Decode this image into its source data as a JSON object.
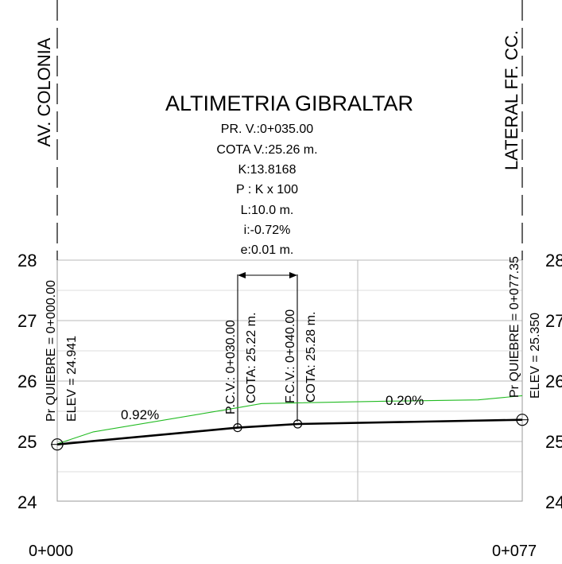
{
  "title": "ALTIMETRIA GIBRALTAR",
  "streets": {
    "left": "AV. COLONIA",
    "right": "LATERAL FF. CC."
  },
  "curve_params": [
    "PR. V.:0+035.00",
    "COTA V.:25.26 m.",
    "K:13.8168",
    "P : K x 100",
    "L:10.0 m.",
    "i:-0.72%",
    "e:0.01 m."
  ],
  "stations": {
    "start": "0+000",
    "end": "0+077"
  },
  "y_ticks_left": [
    "28",
    "27",
    "26",
    "25",
    "24"
  ],
  "y_ticks_right": [
    "28",
    "27",
    "26",
    "25",
    "24"
  ],
  "points": {
    "start_station": "Pr QUIEBRE = 0+000.00",
    "start_elev": "ELEV =  24.941",
    "pcv_station": "P.C.V.: 0+030.00",
    "pcv_cota": "COTA: 25.22 m.",
    "fcv_station": "F.C.V.: 0+040.00",
    "fcv_cota": "COTA: 25.28 m.",
    "end_station": "Pr QUIEBRE = 0+077.35",
    "end_elev": "ELEV =  25.350"
  },
  "slopes": {
    "left": "0.92%",
    "right": "0.20%"
  },
  "colors": {
    "terrain": "#22bb22",
    "profile": "#000000",
    "grid": "#b9b9b9"
  },
  "chart_data": {
    "type": "line",
    "title": "ALTIMETRIA GIBRALTAR",
    "xlabel": "",
    "ylabel": "",
    "xlim": [
      0,
      77.35
    ],
    "ylim": [
      24,
      28
    ],
    "series": [
      {
        "x": [
          0,
          30,
          40,
          77.35
        ],
        "y": [
          24.941,
          25.22,
          25.28,
          25.35
        ]
      },
      {
        "x": [
          0,
          6,
          30,
          34,
          55,
          70,
          77.35
        ],
        "y": [
          24.95,
          25.15,
          25.55,
          25.62,
          25.66,
          25.68,
          25.75
        ]
      }
    ]
  }
}
